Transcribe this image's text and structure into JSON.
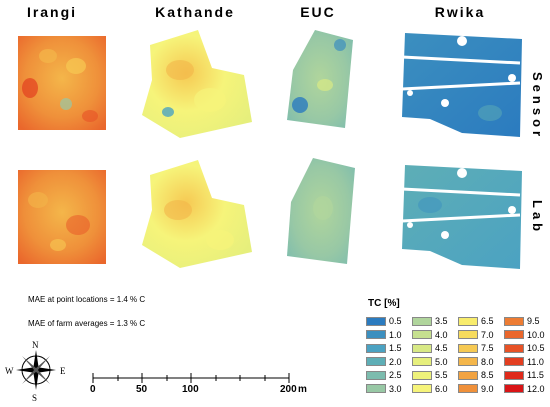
{
  "columns": [
    "Irangi",
    "Kathande",
    "EUC",
    "Rwika"
  ],
  "rows": [
    "Sensor",
    "Lab"
  ],
  "notes": {
    "mae_point": "MAE at point locations = 1.4 % C",
    "mae_farm": "MAE of farm averages = 1.3 % C"
  },
  "legend": {
    "title": "TC [%]",
    "items": [
      {
        "label": "0.5",
        "color": "#2b7bbf"
      },
      {
        "label": "1.0",
        "color": "#3c8fbf"
      },
      {
        "label": "1.5",
        "color": "#4ba2c2"
      },
      {
        "label": "2.0",
        "color": "#5eaeb6"
      },
      {
        "label": "2.5",
        "color": "#7cbcae"
      },
      {
        "label": "3.0",
        "color": "#98c8a5"
      },
      {
        "label": "3.5",
        "color": "#b0d59c"
      },
      {
        "label": "4.0",
        "color": "#c6e08f"
      },
      {
        "label": "4.5",
        "color": "#d8e985"
      },
      {
        "label": "5.0",
        "color": "#e6ef7c"
      },
      {
        "label": "5.5",
        "color": "#eef27a"
      },
      {
        "label": "6.0",
        "color": "#f6f47a"
      },
      {
        "label": "6.5",
        "color": "#f8ec6c"
      },
      {
        "label": "7.0",
        "color": "#f7dc5e"
      },
      {
        "label": "7.5",
        "color": "#f6c953"
      },
      {
        "label": "8.0",
        "color": "#f4b64a"
      },
      {
        "label": "8.5",
        "color": "#f2a342"
      },
      {
        "label": "9.0",
        "color": "#ef903a"
      },
      {
        "label": "9.5",
        "color": "#ed7c33"
      },
      {
        "label": "10.0",
        "color": "#ea672c"
      },
      {
        "label": "10.5",
        "color": "#e75226"
      },
      {
        "label": "11.0",
        "color": "#e33e20"
      },
      {
        "label": "11.5",
        "color": "#df2a1b"
      },
      {
        "label": "12.0",
        "color": "#d91416"
      }
    ]
  },
  "scale": {
    "ticks": [
      "0",
      "50",
      "100",
      "200"
    ],
    "unit": "m"
  },
  "compass": {
    "n": "N",
    "s": "S",
    "e": "E",
    "w": "W"
  }
}
